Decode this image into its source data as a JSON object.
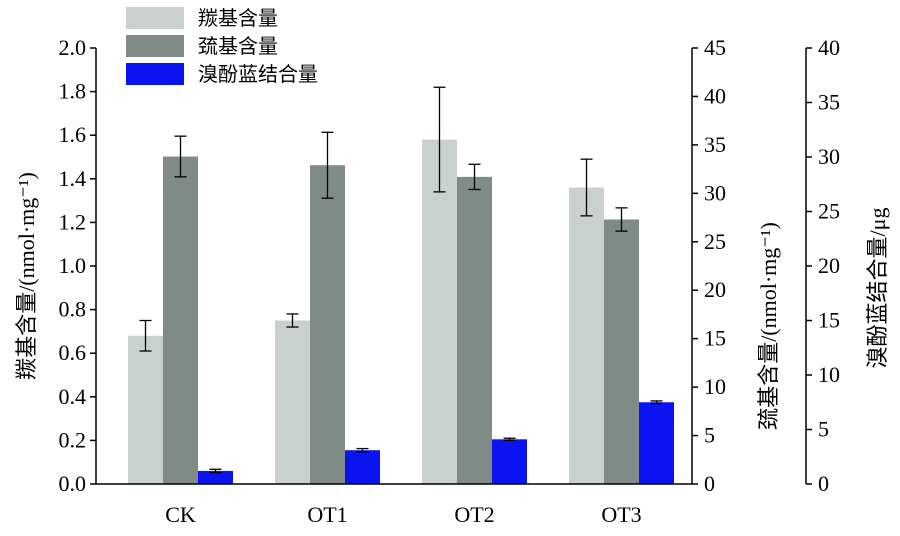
{
  "chart_data": {
    "type": "bar",
    "categories": [
      "CK",
      "OT1",
      "OT2",
      "OT3"
    ],
    "series": [
      {
        "name": "羰基含量",
        "axis": "left",
        "color": "#c9d0ce",
        "values": [
          0.68,
          0.75,
          1.58,
          1.36
        ],
        "errors": [
          0.07,
          0.03,
          0.24,
          0.13
        ]
      },
      {
        "name": "巯基含量",
        "axis": "right1",
        "color": "#808b88",
        "values": [
          33.8,
          32.9,
          31.7,
          27.3
        ],
        "errors": [
          2.1,
          3.4,
          1.3,
          1.2
        ]
      },
      {
        "name": "溴酚蓝结合量",
        "axis": "right2",
        "color": "#0a14f0",
        "values": [
          1.2,
          3.1,
          4.1,
          7.5
        ],
        "errors": [
          0.15,
          0.15,
          0.1,
          0.12
        ]
      }
    ],
    "axes": {
      "left": {
        "label": "羰基含量/(nmol·mg⁻¹)",
        "ylim": [
          0,
          2.0
        ],
        "ticks": [
          "0.0",
          "0.2",
          "0.4",
          "0.6",
          "0.8",
          "1.0",
          "1.2",
          "1.4",
          "1.6",
          "1.8",
          "2.0"
        ]
      },
      "right1": {
        "label": "巯基含量/(nmol·mg⁻¹)",
        "ylim": [
          0,
          45
        ],
        "ticks": [
          "0",
          "5",
          "10",
          "15",
          "20",
          "25",
          "30",
          "35",
          "40",
          "45"
        ]
      },
      "right2": {
        "label": "溴酚蓝结合量/μg",
        "ylim": [
          0,
          40
        ],
        "ticks": [
          "0",
          "5",
          "10",
          "15",
          "20",
          "25",
          "30",
          "35",
          "40"
        ]
      }
    },
    "legend_position": "top-left",
    "grid": false
  }
}
